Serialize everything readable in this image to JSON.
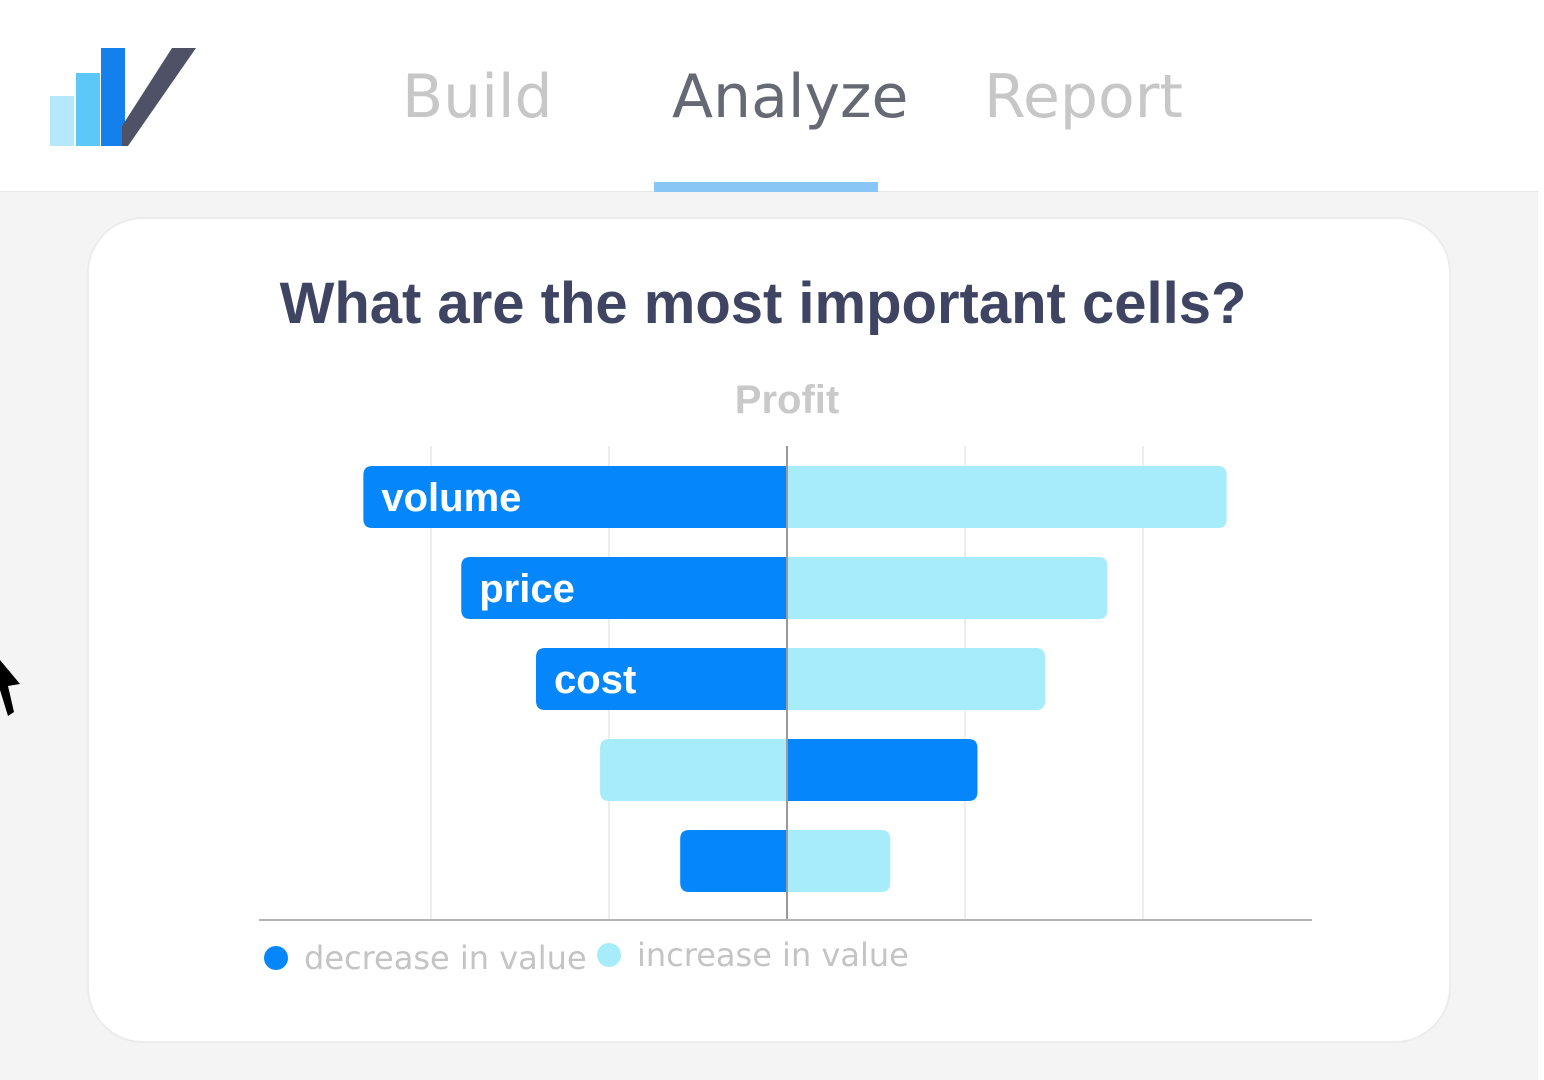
{
  "nav": {
    "tabs": [
      {
        "label": "Build",
        "active": false
      },
      {
        "label": "Analyze",
        "active": true
      },
      {
        "label": "Report",
        "active": false
      }
    ]
  },
  "card": {
    "title": "What are the most important cells?"
  },
  "colors": {
    "decrease": "#0586fb",
    "increase": "#a6ecfb",
    "title": "#3e4461",
    "active_tab": "#666873",
    "inactive_tab": "#c7c7c7",
    "tab_indicator": "#87c6f5"
  },
  "chart_data": {
    "type": "bar",
    "subtype": "tornado",
    "title": "Profit",
    "categories": [
      "volume",
      "price",
      "cost",
      "",
      ""
    ],
    "series": [
      {
        "name": "decrease in value",
        "color": "#0586fb",
        "values": [
          -2.38,
          -1.83,
          -1.41,
          1.07,
          -0.6
        ]
      },
      {
        "name": "increase in value",
        "color": "#a6ecfb",
        "values": [
          2.47,
          1.8,
          1.45,
          -1.05,
          0.58
        ]
      }
    ],
    "xlim": [
      -3,
      3
    ],
    "gridlines": [
      -2,
      -1,
      1,
      2
    ],
    "grid": true,
    "legend_position": "bottom-left",
    "legend": [
      "decrease in value",
      "increase in value"
    ]
  }
}
